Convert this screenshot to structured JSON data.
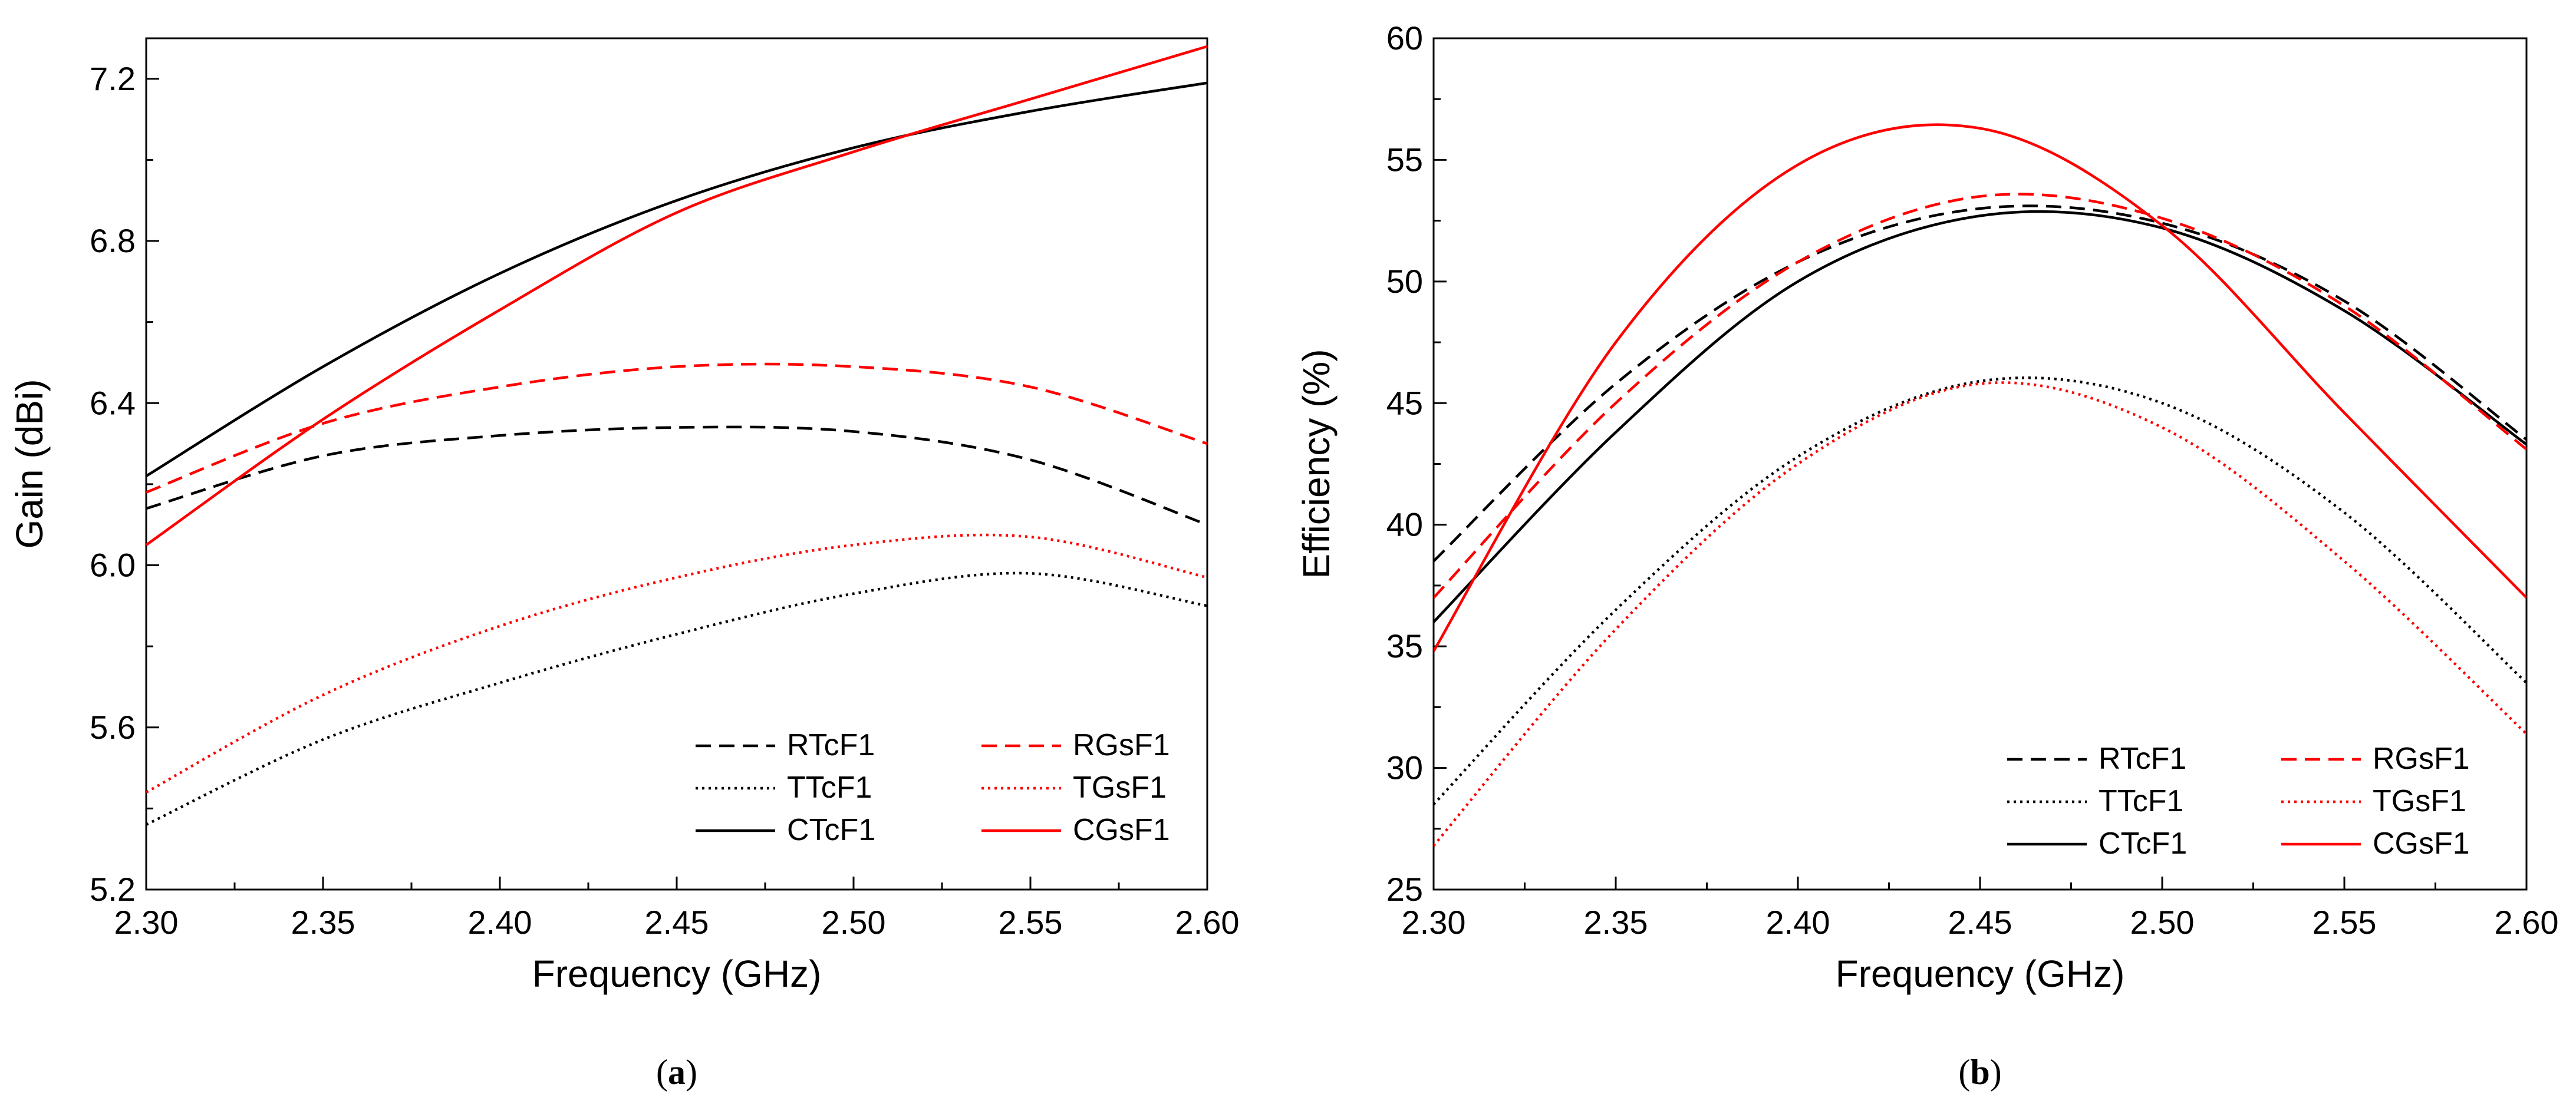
{
  "chart_data": [
    {
      "type": "line",
      "panel": "a",
      "caption": {
        "open": "(",
        "letter": "a",
        "close": ")"
      },
      "title": "",
      "xlabel": "Frequency (GHz)",
      "ylabel": "Gain (dBi)",
      "xlim": [
        2.3,
        2.6
      ],
      "ylim": [
        5.2,
        7.3
      ],
      "xticks": [
        2.3,
        2.35,
        2.4,
        2.45,
        2.5,
        2.55,
        2.6
      ],
      "xtick_labels": [
        "2.30",
        "2.35",
        "2.40",
        "2.45",
        "2.50",
        "2.55",
        "2.60"
      ],
      "yticks": [
        5.2,
        5.6,
        6.0,
        6.4,
        6.8,
        7.2
      ],
      "ytick_labels": [
        "5.2",
        "5.6",
        "6.0",
        "6.4",
        "6.8",
        "7.2"
      ],
      "grid": false,
      "legend_position": "bottom-right",
      "legend_columns": 2,
      "x": [
        2.3,
        2.35,
        2.4,
        2.45,
        2.5,
        2.55,
        2.6
      ],
      "series": [
        {
          "name": "RTcF1",
          "color": "#000000",
          "dash": "dashed",
          "values": [
            6.14,
            6.27,
            6.32,
            6.34,
            6.33,
            6.26,
            6.1
          ]
        },
        {
          "name": "TTcF1",
          "color": "#000000",
          "dash": "dotted",
          "values": [
            5.36,
            5.57,
            5.71,
            5.83,
            5.93,
            5.98,
            5.9
          ]
        },
        {
          "name": "CTcF1",
          "color": "#000000",
          "dash": "solid",
          "values": [
            6.22,
            6.49,
            6.72,
            6.9,
            7.03,
            7.12,
            7.19
          ]
        },
        {
          "name": "RGsF1",
          "color": "#ff0000",
          "dash": "dashed",
          "values": [
            6.18,
            6.35,
            6.44,
            6.49,
            6.49,
            6.44,
            6.3
          ]
        },
        {
          "name": "TGsF1",
          "color": "#ff0000",
          "dash": "dotted",
          "values": [
            5.44,
            5.68,
            5.85,
            5.97,
            6.05,
            6.07,
            5.97
          ]
        },
        {
          "name": "CGsF1",
          "color": "#ff0000",
          "dash": "solid",
          "values": [
            6.05,
            6.36,
            6.63,
            6.87,
            7.02,
            7.15,
            7.28
          ]
        }
      ]
    },
    {
      "type": "line",
      "panel": "b",
      "caption": {
        "open": "(",
        "letter": "b",
        "close": ")"
      },
      "title": "",
      "xlabel": "Frequency (GHz)",
      "ylabel": "Efficiency (%)",
      "xlim": [
        2.3,
        2.6
      ],
      "ylim": [
        25,
        60
      ],
      "xticks": [
        2.3,
        2.35,
        2.4,
        2.45,
        2.5,
        2.55,
        2.6
      ],
      "xtick_labels": [
        "2.30",
        "2.35",
        "2.40",
        "2.45",
        "2.50",
        "2.55",
        "2.60"
      ],
      "yticks": [
        25,
        30,
        35,
        40,
        45,
        50,
        55,
        60
      ],
      "ytick_labels": [
        "25",
        "30",
        "35",
        "40",
        "45",
        "50",
        "55",
        "60"
      ],
      "grid": false,
      "legend_position": "bottom-right",
      "legend_columns": 2,
      "x": [
        2.3,
        2.35,
        2.4,
        2.45,
        2.5,
        2.55,
        2.6
      ],
      "series": [
        {
          "name": "RTcF1",
          "color": "#000000",
          "dash": "dashed",
          "values": [
            38.5,
            45.8,
            50.8,
            53.0,
            52.4,
            49.2,
            43.5
          ]
        },
        {
          "name": "TTcF1",
          "color": "#000000",
          "dash": "dotted",
          "values": [
            28.5,
            36.5,
            42.8,
            45.9,
            45.0,
            40.5,
            33.5
          ]
        },
        {
          "name": "CTcF1",
          "color": "#000000",
          "dash": "solid",
          "values": [
            36.0,
            43.8,
            50.0,
            52.7,
            52.2,
            48.8,
            43.3
          ]
        },
        {
          "name": "RGsF1",
          "color": "#ff0000",
          "dash": "dashed",
          "values": [
            37.0,
            45.0,
            50.8,
            53.5,
            52.6,
            49.0,
            43.1
          ]
        },
        {
          "name": "TGsF1",
          "color": "#ff0000",
          "dash": "dotted",
          "values": [
            26.8,
            35.7,
            42.5,
            45.8,
            44.0,
            38.5,
            31.4
          ]
        },
        {
          "name": "CGsF1",
          "color": "#ff0000",
          "dash": "solid",
          "values": [
            34.8,
            47.5,
            54.8,
            56.3,
            52.3,
            44.6,
            37.0
          ]
        }
      ]
    }
  ]
}
